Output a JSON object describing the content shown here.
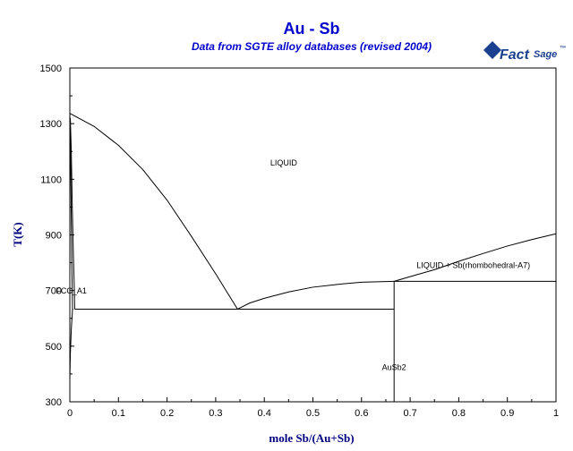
{
  "colors": {
    "title": "#0000cc",
    "axis_label": "#000080",
    "curve": "#000000",
    "logo": "#1a3f8f"
  },
  "logo": {
    "text_main": "Fact",
    "text_sub": "Sage",
    "mark": "™",
    "icon": "factsage-logo-icon"
  },
  "chart_data": {
    "type": "line",
    "title": "Au - Sb",
    "subtitle": "Data from SGTE alloy databases (revised 2004)",
    "xlabel": "mole Sb/(Au+Sb)",
    "ylabel": "T(K)",
    "xlim": [
      0,
      1
    ],
    "ylim": [
      300,
      1500
    ],
    "xticks": [
      0,
      0.1,
      0.2,
      0.3,
      0.4,
      0.5,
      0.6,
      0.7,
      0.8,
      0.9,
      1
    ],
    "xtick_labels": [
      "0",
      "0.1",
      "0.2",
      "0.3",
      "0.4",
      "0.5",
      "0.6",
      "0.7",
      "0.8",
      "0.9",
      "1"
    ],
    "yticks": [
      300,
      500,
      700,
      900,
      1100,
      1300,
      1500
    ],
    "ytick_labels": [
      "300",
      "500",
      "700",
      "900",
      "1100",
      "1300",
      "1500"
    ],
    "grid": false,
    "series": [
      {
        "values": [
          [
            0,
            1337
          ],
          [
            0.05,
            1290
          ],
          [
            0.1,
            1222
          ],
          [
            0.15,
            1135
          ],
          [
            0.2,
            1025
          ],
          [
            0.25,
            895
          ],
          [
            0.3,
            760
          ],
          [
            0.345,
            633
          ]
        ]
      },
      {
        "values": [
          [
            0.345,
            633
          ],
          [
            0.37,
            655
          ],
          [
            0.4,
            672
          ],
          [
            0.45,
            695
          ],
          [
            0.5,
            712
          ],
          [
            0.55,
            722
          ],
          [
            0.6,
            730
          ],
          [
            0.667,
            733
          ]
        ]
      },
      {
        "values": [
          [
            0.667,
            733
          ],
          [
            0.7,
            750
          ],
          [
            0.75,
            775
          ],
          [
            0.8,
            805
          ],
          [
            0.85,
            833
          ],
          [
            0.9,
            860
          ],
          [
            0.95,
            883
          ],
          [
            1,
            904
          ]
        ]
      },
      {
        "values": [
          [
            0,
            1337
          ],
          [
            0.001,
            1250
          ],
          [
            0.002,
            1100
          ],
          [
            0.003,
            950
          ],
          [
            0.004,
            800
          ],
          [
            0.005,
            700
          ],
          [
            0.0055,
            633
          ]
        ]
      },
      {
        "values": [
          [
            0.001,
            1320
          ],
          [
            0.003,
            1200
          ],
          [
            0.005,
            1000
          ],
          [
            0.007,
            850
          ],
          [
            0.009,
            720
          ],
          [
            0.01,
            633
          ]
        ]
      },
      {
        "values": [
          [
            0.0055,
            633
          ],
          [
            0.003,
            560
          ],
          [
            0.001,
            470
          ],
          [
            0,
            380
          ]
        ]
      },
      {
        "values": [
          [
            0.007,
            633
          ],
          [
            0.0055,
            633
          ]
        ]
      },
      {
        "values": [
          [
            0.01,
            633
          ],
          [
            0.667,
            633
          ]
        ]
      },
      {
        "values": [
          [
            0.667,
            733
          ],
          [
            1,
            733
          ]
        ]
      },
      {
        "values": [
          [
            0.667,
            733
          ],
          [
            0.667,
            300
          ]
        ]
      }
    ],
    "annotations": [
      {
        "text": "LIQUID",
        "x": 0.44,
        "y": 1150
      },
      {
        "text": "LIQUID + Sb(rhombohedral-A7)",
        "x": 0.83,
        "y": 781
      },
      {
        "text": "FCC_A1",
        "x": 0.003,
        "y": 690
      },
      {
        "text": "AuSb2",
        "x": 0.667,
        "y": 415
      }
    ]
  }
}
